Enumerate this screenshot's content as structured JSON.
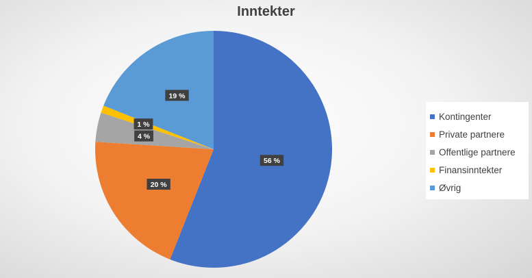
{
  "chart_data": {
    "type": "pie",
    "title": "Inntekter",
    "categories": [
      "Kontingenter",
      "Private partnere",
      "Offentlige partnere",
      "Finansinntekter",
      "Øvrig"
    ],
    "values": [
      56,
      20,
      4,
      1,
      19
    ],
    "value_labels": [
      "56 %",
      "20 %",
      "4 %",
      "1 %",
      "19 %"
    ],
    "colors": [
      "#4472c4",
      "#ed7d31",
      "#a5a5a5",
      "#ffc000",
      "#5b9bd5"
    ],
    "start_angle": "12 o'clock",
    "direction": "clockwise",
    "legend_position": "right"
  }
}
